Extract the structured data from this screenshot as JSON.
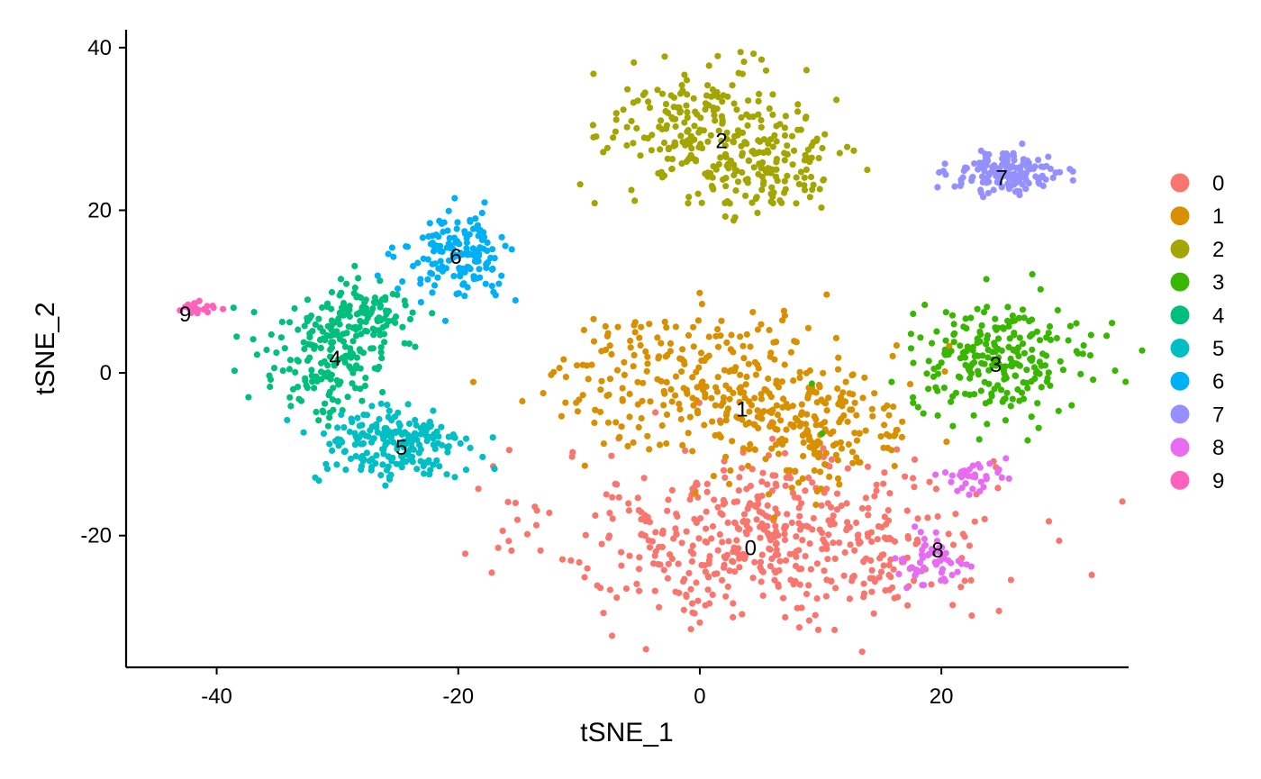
{
  "chart_data": {
    "type": "scatter",
    "xlabel": "tSNE_1",
    "ylabel": "tSNE_2",
    "xlim": [
      -47.5,
      35.5
    ],
    "ylim": [
      -36.2,
      42.2
    ],
    "xticks": [
      -40,
      -20,
      0,
      20
    ],
    "yticks": [
      -20,
      0,
      20,
      40
    ],
    "xtick_labels": [
      "-40",
      "-20",
      "0",
      "20"
    ],
    "ytick_labels": [
      "-20",
      "0",
      "20",
      "40"
    ],
    "grid": false,
    "legend_position": "right",
    "legend": [
      "0",
      "1",
      "2",
      "3",
      "4",
      "5",
      "6",
      "7",
      "8",
      "9"
    ],
    "clusters": [
      {
        "name": "0",
        "color": "#F8766D",
        "label_x": 4.2,
        "label_y": -21.5,
        "n_points": 520,
        "blobs": [
          {
            "cx": 6,
            "cy": -20,
            "sx": 9.0,
            "sy": 5.4,
            "n": 520
          }
        ]
      },
      {
        "name": "1",
        "color": "#D89000",
        "label_x": 3.5,
        "label_y": -4.5,
        "n_points": 440,
        "blobs": [
          {
            "cx": 1,
            "cy": -1,
            "sx": 6.8,
            "sy": 4.2,
            "n": 300
          },
          {
            "cx": 10,
            "cy": -8,
            "sx": 4.0,
            "sy": 3.5,
            "n": 140
          }
        ]
      },
      {
        "name": "2",
        "color": "#A3A500",
        "label_x": 1.8,
        "label_y": 28.5,
        "n_points": 330,
        "blobs": [
          {
            "cx": 0.5,
            "cy": 30,
            "sx": 4.2,
            "sy": 4.0,
            "n": 220
          },
          {
            "cx": 5.5,
            "cy": 25,
            "sx": 3.2,
            "sy": 2.6,
            "n": 110
          }
        ]
      },
      {
        "name": "3",
        "color": "#39B600",
        "label_x": 24.5,
        "label_y": 1.0,
        "n_points": 240,
        "blobs": [
          {
            "cx": 25,
            "cy": 1.5,
            "sx": 3.8,
            "sy": 3.2,
            "n": 240
          }
        ]
      },
      {
        "name": "4",
        "color": "#00BF7D",
        "label_x": -30.2,
        "label_y": 1.8,
        "n_points": 260,
        "blobs": [
          {
            "cx": -31,
            "cy": 2,
            "sx": 2.8,
            "sy": 3.8,
            "n": 180
          },
          {
            "cx": -27.5,
            "cy": 7.5,
            "sx": 1.8,
            "sy": 2.2,
            "n": 80
          }
        ]
      },
      {
        "name": "5",
        "color": "#00BFC4",
        "label_x": -24.7,
        "label_y": -9.2,
        "n_points": 200,
        "blobs": [
          {
            "cx": -25.5,
            "cy": -9,
            "sx": 3.2,
            "sy": 2.4,
            "n": 200
          }
        ]
      },
      {
        "name": "6",
        "color": "#00B0F6",
        "label_x": -20.2,
        "label_y": 14.3,
        "n_points": 150,
        "blobs": [
          {
            "cx": -20,
            "cy": 14.5,
            "sx": 2.2,
            "sy": 2.5,
            "n": 150
          }
        ]
      },
      {
        "name": "7",
        "color": "#9590FF",
        "label_x": 25.0,
        "label_y": 24.0,
        "n_points": 150,
        "blobs": [
          {
            "cx": 25.5,
            "cy": 24.5,
            "sx": 2.3,
            "sy": 1.3,
            "n": 150
          }
        ]
      },
      {
        "name": "8",
        "color": "#E76BF3",
        "label_x": 19.7,
        "label_y": -21.8,
        "n_points": 90,
        "blobs": [
          {
            "cx": 19.5,
            "cy": -23,
            "sx": 1.3,
            "sy": 1.6,
            "n": 55
          },
          {
            "cx": 22.5,
            "cy": -13,
            "sx": 1.5,
            "sy": 0.9,
            "n": 35
          }
        ]
      },
      {
        "name": "9",
        "color": "#FF62BC",
        "label_x": -42.6,
        "label_y": 7.2,
        "n_points": 20,
        "blobs": [
          {
            "cx": -42,
            "cy": 8,
            "sx": 0.8,
            "sy": 0.35,
            "n": 20
          }
        ]
      }
    ]
  }
}
